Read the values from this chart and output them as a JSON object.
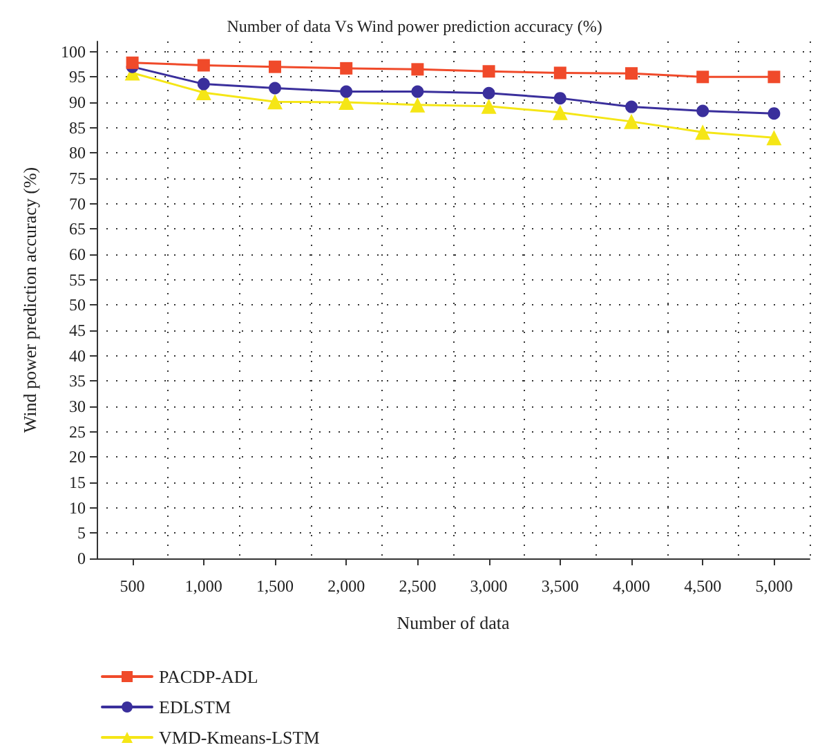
{
  "chart_data": {
    "type": "line",
    "title": "Number of data Vs Wind power prediction accuracy (%)",
    "xlabel": "Number of data",
    "ylabel": "Wind power prediction accuracy (%)",
    "categories": [
      "500",
      "1,000",
      "1,500",
      "2,000",
      "2,500",
      "3,000",
      "3,500",
      "4,000",
      "4,500",
      "5,000"
    ],
    "series": [
      {
        "name": "PACDP-ADL",
        "color": "#f04a2a",
        "marker": "square",
        "values": [
          97.8,
          97.3,
          97.0,
          96.7,
          96.5,
          96.1,
          95.8,
          95.7,
          95.0,
          95.0
        ]
      },
      {
        "name": "EDLSTM",
        "color": "#3a2f9c",
        "marker": "circle",
        "values": [
          97.0,
          93.6,
          92.8,
          92.1,
          92.1,
          91.8,
          90.8,
          89.1,
          88.3,
          87.8
        ]
      },
      {
        "name": "VMD-Kmeans-LSTM",
        "color": "#f5e616",
        "marker": "triangle",
        "values": [
          95.8,
          91.9,
          90.1,
          90.0,
          89.5,
          89.2,
          88.0,
          86.2,
          84.1,
          83.0
        ]
      }
    ],
    "ylim": [
      0,
      102
    ],
    "yticks": [
      0,
      5,
      10,
      15,
      20,
      25,
      30,
      35,
      40,
      45,
      50,
      55,
      60,
      65,
      70,
      75,
      80,
      85,
      90,
      95,
      100
    ],
    "grid": true,
    "legend": "bottom left",
    "line_style": "solid"
  }
}
